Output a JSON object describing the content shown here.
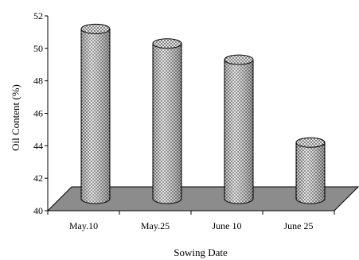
{
  "chart_data": {
    "type": "bar",
    "style": "3d-cylinder",
    "categories": [
      "May.10",
      "May.25",
      "June 10",
      "June 25"
    ],
    "values": [
      51.2,
      50.3,
      49.3,
      44.2
    ],
    "title": "",
    "xlabel": "Sowing Date",
    "ylabel": "Oil Content (%)",
    "ylim": [
      40,
      52
    ],
    "yticks": [
      40,
      42,
      44,
      46,
      48,
      50,
      52
    ],
    "grid": false,
    "legend": "none",
    "colors": {
      "floor": "#8c8c8c",
      "bar_fill": "#e6e6e6",
      "bar_dots": "#3a3a3a",
      "bar_edge": "#000000",
      "axis": "#000000"
    }
  }
}
